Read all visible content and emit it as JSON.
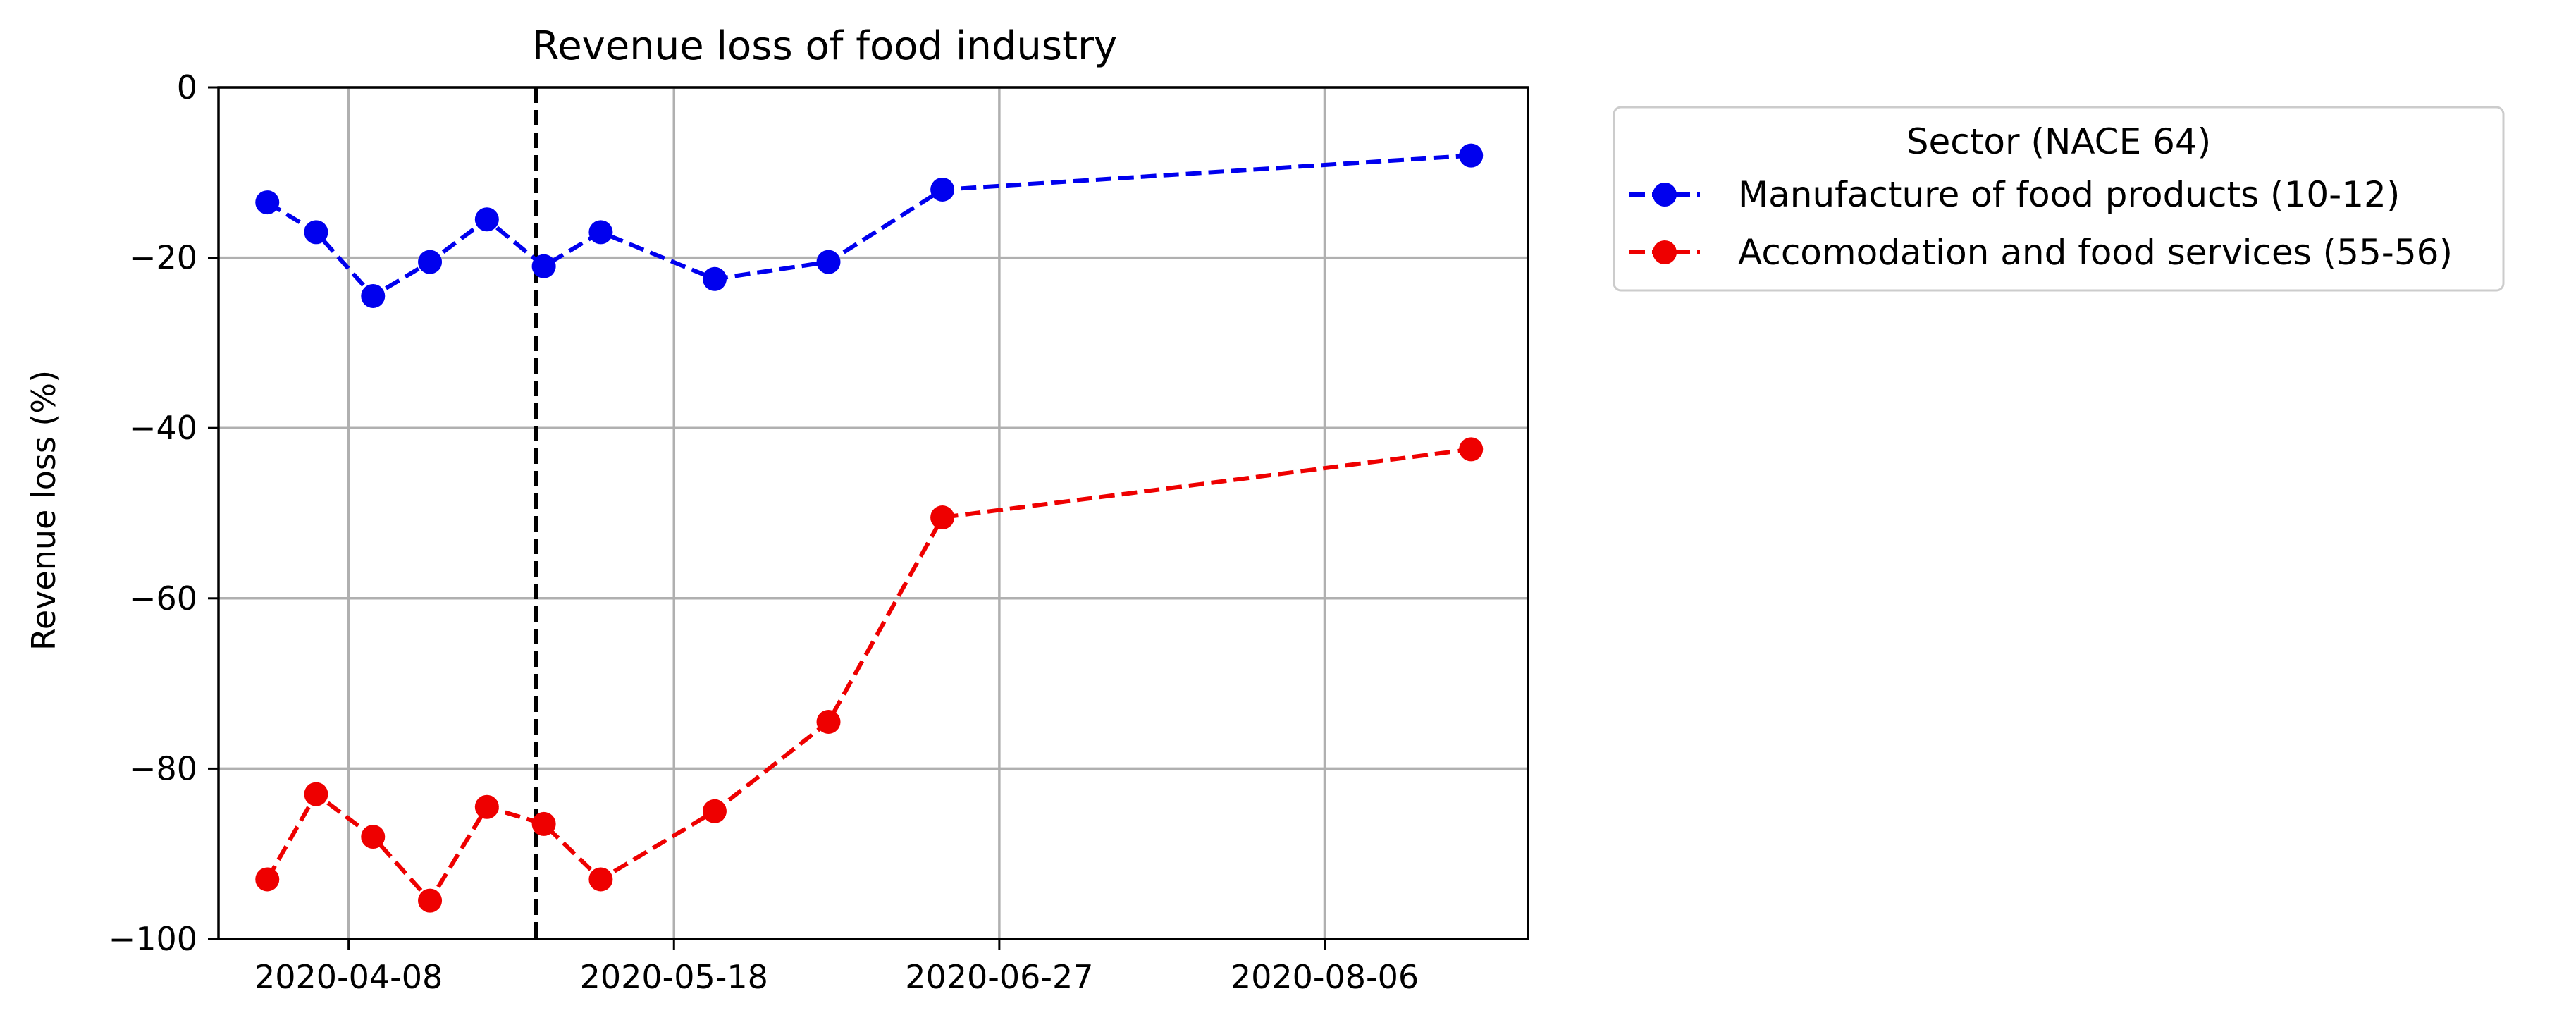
{
  "chart_data": {
    "type": "line",
    "title": "Revenue loss of food industry",
    "xlabel": "",
    "ylabel": "Revenue loss (%)",
    "x_axis_type": "date",
    "xlim": [
      "2020-03-23",
      "2020-08-31"
    ],
    "ylim": [
      -100,
      0
    ],
    "xticks": [
      "2020-04-08",
      "2020-05-18",
      "2020-06-27",
      "2020-08-06"
    ],
    "yticks": [
      0,
      -20,
      -40,
      -60,
      -80,
      -100
    ],
    "grid": true,
    "reference_line": {
      "x": "2020-05-01",
      "style": "dashed",
      "color": "#000000"
    },
    "legend": {
      "title": "Sector (NACE 64)",
      "placement": "outside-top-right"
    },
    "series": [
      {
        "name": "Manufacture of food products (10-12)",
        "color": "#0000ee",
        "style": "dashed-with-circles",
        "x": [
          "2020-03-29",
          "2020-04-04",
          "2020-04-11",
          "2020-04-18",
          "2020-04-25",
          "2020-05-02",
          "2020-05-09",
          "2020-05-23",
          "2020-06-06",
          "2020-06-20",
          "2020-08-24"
        ],
        "y": [
          -13.5,
          -17,
          -24.5,
          -20.5,
          -15.5,
          -21,
          -17,
          -22.5,
          -20.5,
          -12,
          -8
        ]
      },
      {
        "name": "Accomodation and food services (55-56)",
        "color": "#ee0000",
        "style": "dashed-with-circles",
        "x": [
          "2020-03-29",
          "2020-04-04",
          "2020-04-11",
          "2020-04-18",
          "2020-04-25",
          "2020-05-02",
          "2020-05-09",
          "2020-05-23",
          "2020-06-06",
          "2020-06-20",
          "2020-08-24"
        ],
        "y": [
          -93,
          -83,
          -88,
          -95.5,
          -84.5,
          -86.5,
          -93,
          -85,
          -74.5,
          -50.5,
          -42.5
        ]
      }
    ]
  }
}
